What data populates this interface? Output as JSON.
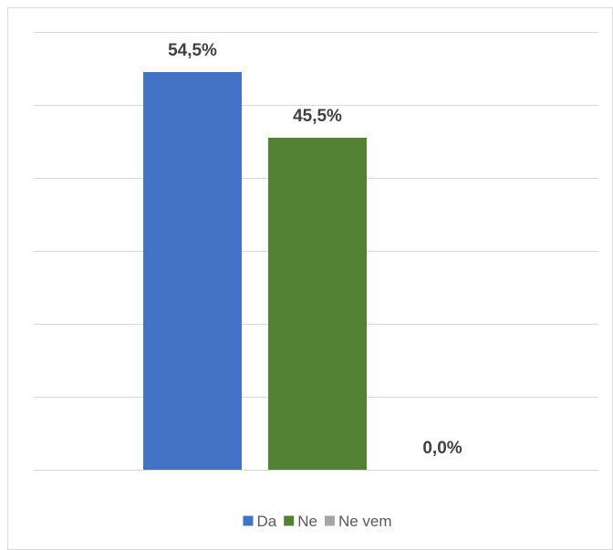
{
  "chart_data": {
    "type": "bar",
    "categories": [
      "Da",
      "Ne",
      "Ne vem"
    ],
    "values": [
      54.5,
      45.5,
      0.0
    ],
    "data_labels": [
      "54,5%",
      "45,5%",
      "0,0%"
    ],
    "colors": [
      "#4472C4",
      "#548235",
      "#A5A5A5"
    ],
    "title": "",
    "xlabel": "",
    "ylabel": "",
    "ylim": [
      0,
      60
    ],
    "grid": true,
    "legend": {
      "position": "bottom",
      "entries": [
        "Da",
        "Ne",
        "Ne vem"
      ]
    }
  }
}
